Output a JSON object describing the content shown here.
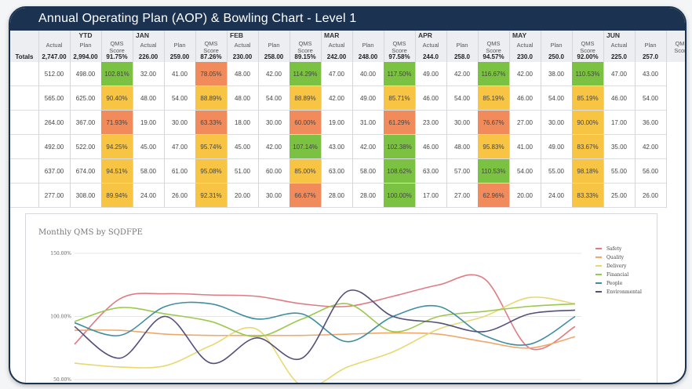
{
  "window": {
    "title": "Annual Operating Plan (AOP) & Bowling Chart - Level 1"
  },
  "table": {
    "totals_label": "Totals",
    "sub_labels": {
      "actual": "Actual",
      "plan": "Plan",
      "qms_line1": "QMS",
      "qms_line2": "Score"
    },
    "periods": [
      {
        "name": "YTD",
        "totals": [
          "2,747.00",
          "2,994.00",
          "91.75%"
        ]
      },
      {
        "name": "JAN",
        "totals": [
          "226.00",
          "259.00",
          "87.26%"
        ]
      },
      {
        "name": "FEB",
        "totals": [
          "230.00",
          "258.00",
          "89.15%"
        ]
      },
      {
        "name": "MAR",
        "totals": [
          "242.00",
          "248.00",
          "97.58%"
        ]
      },
      {
        "name": "APR",
        "totals": [
          "244.0",
          "258.0",
          "94.57%"
        ]
      },
      {
        "name": "MAY",
        "totals": [
          "230.0",
          "250.0",
          "92.00%"
        ]
      },
      {
        "name": "JUN",
        "totals": [
          "225.0",
          "257.0",
          ""
        ]
      }
    ],
    "rows": [
      [
        "512.00",
        "498.00",
        "102.81%",
        "32.00",
        "41.00",
        "78.05%",
        "48.00",
        "42.00",
        "114.29%",
        "47.00",
        "40.00",
        "117.50%",
        "49.00",
        "42.00",
        "116.67%",
        "42.00",
        "38.00",
        "110.53%",
        "47.00",
        "43.00"
      ],
      [
        "565.00",
        "625.00",
        "90.40%",
        "48.00",
        "54.00",
        "88.89%",
        "48.00",
        "54.00",
        "88.89%",
        "42.00",
        "49.00",
        "85.71%",
        "46.00",
        "54.00",
        "85.19%",
        "46.00",
        "54.00",
        "85.19%",
        "46.00",
        "54.00"
      ],
      [
        "264.00",
        "367.00",
        "71.93%",
        "19.00",
        "30.00",
        "63.33%",
        "18.00",
        "30.00",
        "60.00%",
        "19.00",
        "31.00",
        "61.29%",
        "23.00",
        "30.00",
        "76.67%",
        "27.00",
        "30.00",
        "90.00%",
        "17.00",
        "36.00"
      ],
      [
        "492.00",
        "522.00",
        "94.25%",
        "45.00",
        "47.00",
        "95.74%",
        "45.00",
        "42.00",
        "107.14%",
        "43.00",
        "42.00",
        "102.38%",
        "46.00",
        "48.00",
        "95.83%",
        "41.00",
        "49.00",
        "83.67%",
        "35.00",
        "42.00"
      ],
      [
        "637.00",
        "674.00",
        "94.51%",
        "58.00",
        "61.00",
        "95.08%",
        "51.00",
        "60.00",
        "85.00%",
        "63.00",
        "58.00",
        "108.62%",
        "63.00",
        "57.00",
        "110.53%",
        "54.00",
        "55.00",
        "98.18%",
        "55.00",
        "56.00"
      ],
      [
        "277.00",
        "308.00",
        "89.94%",
        "24.00",
        "26.00",
        "92.31%",
        "20.00",
        "30.00",
        "66.67%",
        "28.00",
        "28.00",
        "100.00%",
        "17.00",
        "27.00",
        "62.96%",
        "20.00",
        "24.00",
        "83.33%",
        "25.00",
        "26.00"
      ]
    ],
    "colors": {
      "green": "#7cc242",
      "yellow": "#f7c543",
      "orange": "#f28b5b",
      "header": "#eceef1"
    }
  },
  "chart_data": {
    "type": "line",
    "title": "Monthly QMS by SQDFPE",
    "ylim": [
      50,
      150
    ],
    "yticks": [
      "150.00%",
      "100.00%",
      "50.00%"
    ],
    "legend_position": "right",
    "x": [
      1,
      2,
      3,
      4,
      5,
      6,
      7,
      8,
      9,
      10,
      11,
      12
    ],
    "series": [
      {
        "name": "Safety",
        "color": "#e07b84",
        "values": [
          78,
          114,
          118,
          117,
          116,
          110,
          108,
          116,
          125,
          130,
          75,
          92
        ]
      },
      {
        "name": "Quality",
        "color": "#f0a86a",
        "values": [
          89,
          89,
          86,
          85,
          85,
          85,
          86,
          87,
          86,
          80,
          75,
          84
        ]
      },
      {
        "name": "Delivery",
        "color": "#e8d870",
        "values": [
          63,
          60,
          61,
          77,
          90,
          45,
          60,
          72,
          90,
          100,
          115,
          110
        ]
      },
      {
        "name": "Financial",
        "color": "#9cc850",
        "values": [
          96,
          107,
          102,
          96,
          84,
          98,
          110,
          88,
          100,
          104,
          108,
          110
        ]
      },
      {
        "name": "People",
        "color": "#3e8ea0",
        "values": [
          95,
          85,
          108,
          110,
          98,
          102,
          80,
          100,
          108,
          85,
          78,
          100
        ]
      },
      {
        "name": "Environmental",
        "color": "#55507a",
        "values": [
          92,
          67,
          100,
          63,
          83,
          67,
          120,
          100,
          95,
          88,
          102,
          105
        ]
      }
    ]
  }
}
